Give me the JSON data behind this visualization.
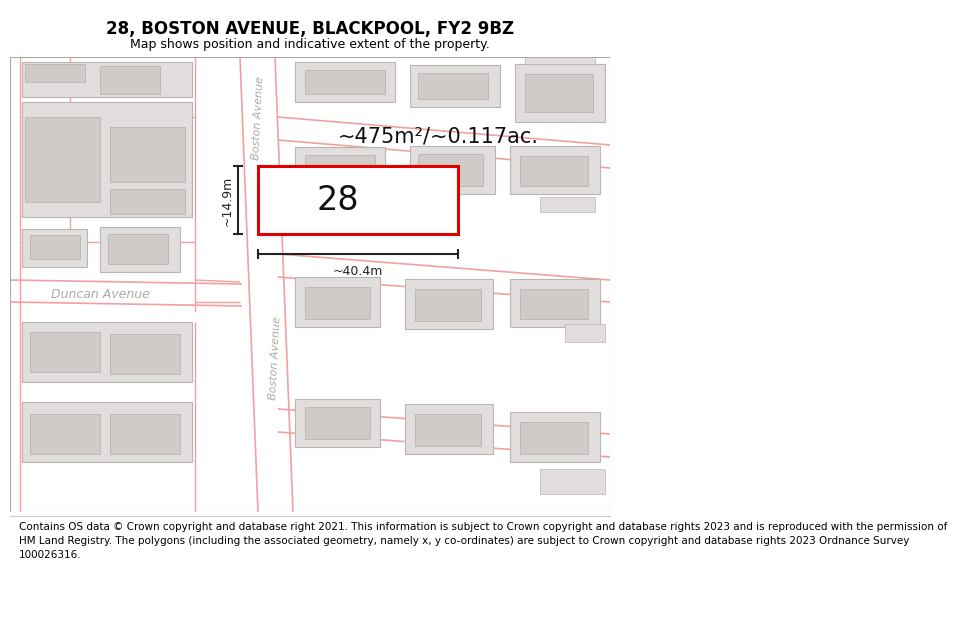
{
  "title": "28, BOSTON AVENUE, BLACKPOOL, FY2 9BZ",
  "subtitle": "Map shows position and indicative extent of the property.",
  "footer": "Contains OS data © Crown copyright and database right 2021. This information is subject to Crown copyright and database rights 2023 and is reproduced with the permission of\nHM Land Registry. The polygons (including the associated geometry, namely x, y co-ordinates) are subject to Crown copyright and database rights 2023 Ordnance Survey\n100026316.",
  "area_label": "~475m²/~0.117ac.",
  "width_label": "~40.4m",
  "height_label": "~14.9m",
  "number_label": "28",
  "bg_color": "#ffffff",
  "map_bg": "#f7f4f2",
  "road_line_color": "#f5a0a0",
  "building_fill": "#e2dedd",
  "building_fill2": "#d0cbc8",
  "building_edge": "#bbb5b2",
  "property_fill": "#ffffff",
  "property_outline": "#e00000",
  "street_color": "#b0aaaa",
  "dim_color": "#222222",
  "title_fontsize": 12,
  "subtitle_fontsize": 9,
  "footer_fontsize": 7.5
}
